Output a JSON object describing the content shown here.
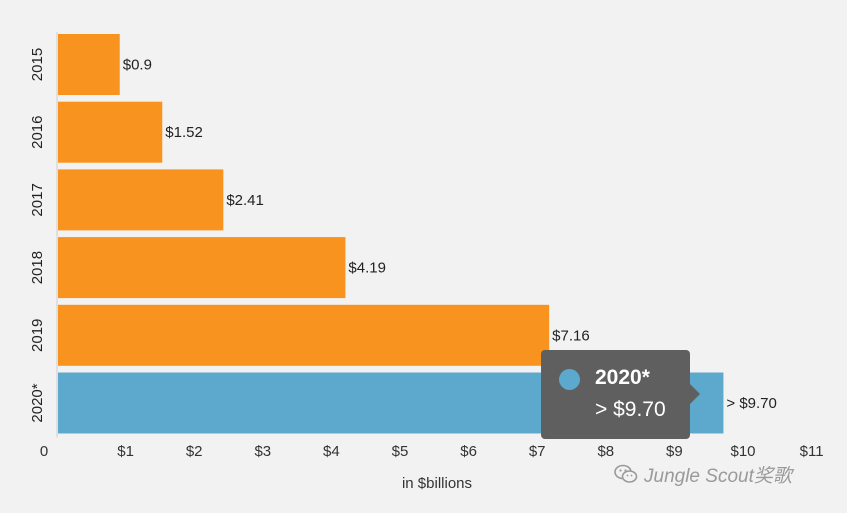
{
  "chart_data": {
    "type": "bar",
    "orientation": "horizontal",
    "categories": [
      "2015",
      "2016",
      "2017",
      "2018",
      "2019",
      "2020*"
    ],
    "values": [
      0.9,
      1.52,
      2.41,
      4.19,
      7.16,
      9.7
    ],
    "value_labels": [
      "$0.9",
      "$1.52",
      "$2.41",
      "$4.19",
      "$7.16",
      "> $9.70"
    ],
    "bar_colors": [
      "#f7931e",
      "#f7931e",
      "#f7931e",
      "#f7931e",
      "#f7931e",
      "#5ca9cd"
    ],
    "xlabel": "in $billions",
    "xlim": [
      0,
      11
    ],
    "x_ticks": [
      0,
      1,
      2,
      3,
      4,
      5,
      6,
      7,
      8,
      9,
      10,
      11
    ],
    "x_tick_labels": [
      "0",
      "$1",
      "$2",
      "$3",
      "$4",
      "$5",
      "$6",
      "$7",
      "$8",
      "$9",
      "$10",
      "$11"
    ]
  },
  "tooltip": {
    "title": "2020*",
    "value": "> $9.70",
    "color": "#5ca9cd"
  },
  "watermark": {
    "text": "Jungle Scout奖歌"
  }
}
